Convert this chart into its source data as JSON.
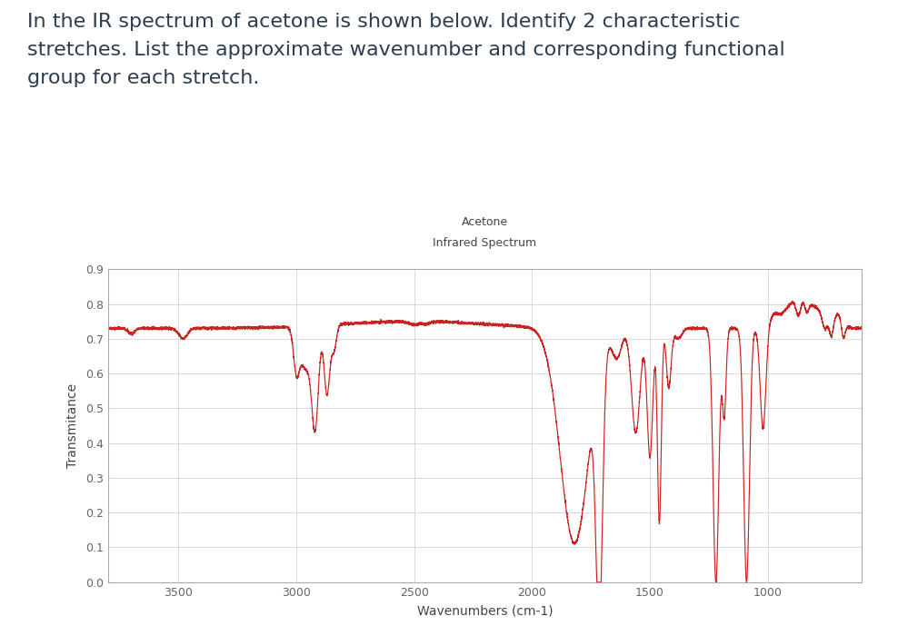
{
  "title": "Acetone",
  "subtitle": "Infrared Spectrum",
  "xlabel": "Wavenumbers (cm-1)",
  "ylabel": "Transmitance",
  "xlim": [
    3800,
    600
  ],
  "ylim": [
    0.0,
    0.9
  ],
  "yticks": [
    0.0,
    0.1,
    0.2,
    0.3,
    0.4,
    0.5,
    0.6,
    0.7,
    0.8,
    0.9
  ],
  "xticks": [
    3500,
    3000,
    2500,
    2000,
    1500,
    1000
  ],
  "line_color": "#cc2222",
  "bg_color": "#ffffff",
  "grid_color": "#d8d8d8",
  "text_color": "#444444",
  "header_text": "In the IR spectrum of acetone is shown below. Identify 2 characteristic\nstretches. List the approximate wavenumber and corresponding functional\ngroup for each stretch.",
  "header_color": "#2c3e50",
  "header_fontsize": 16,
  "title_fontsize": 9,
  "subtitle_fontsize": 9,
  "axis_fontsize": 9,
  "label_fontsize": 10
}
